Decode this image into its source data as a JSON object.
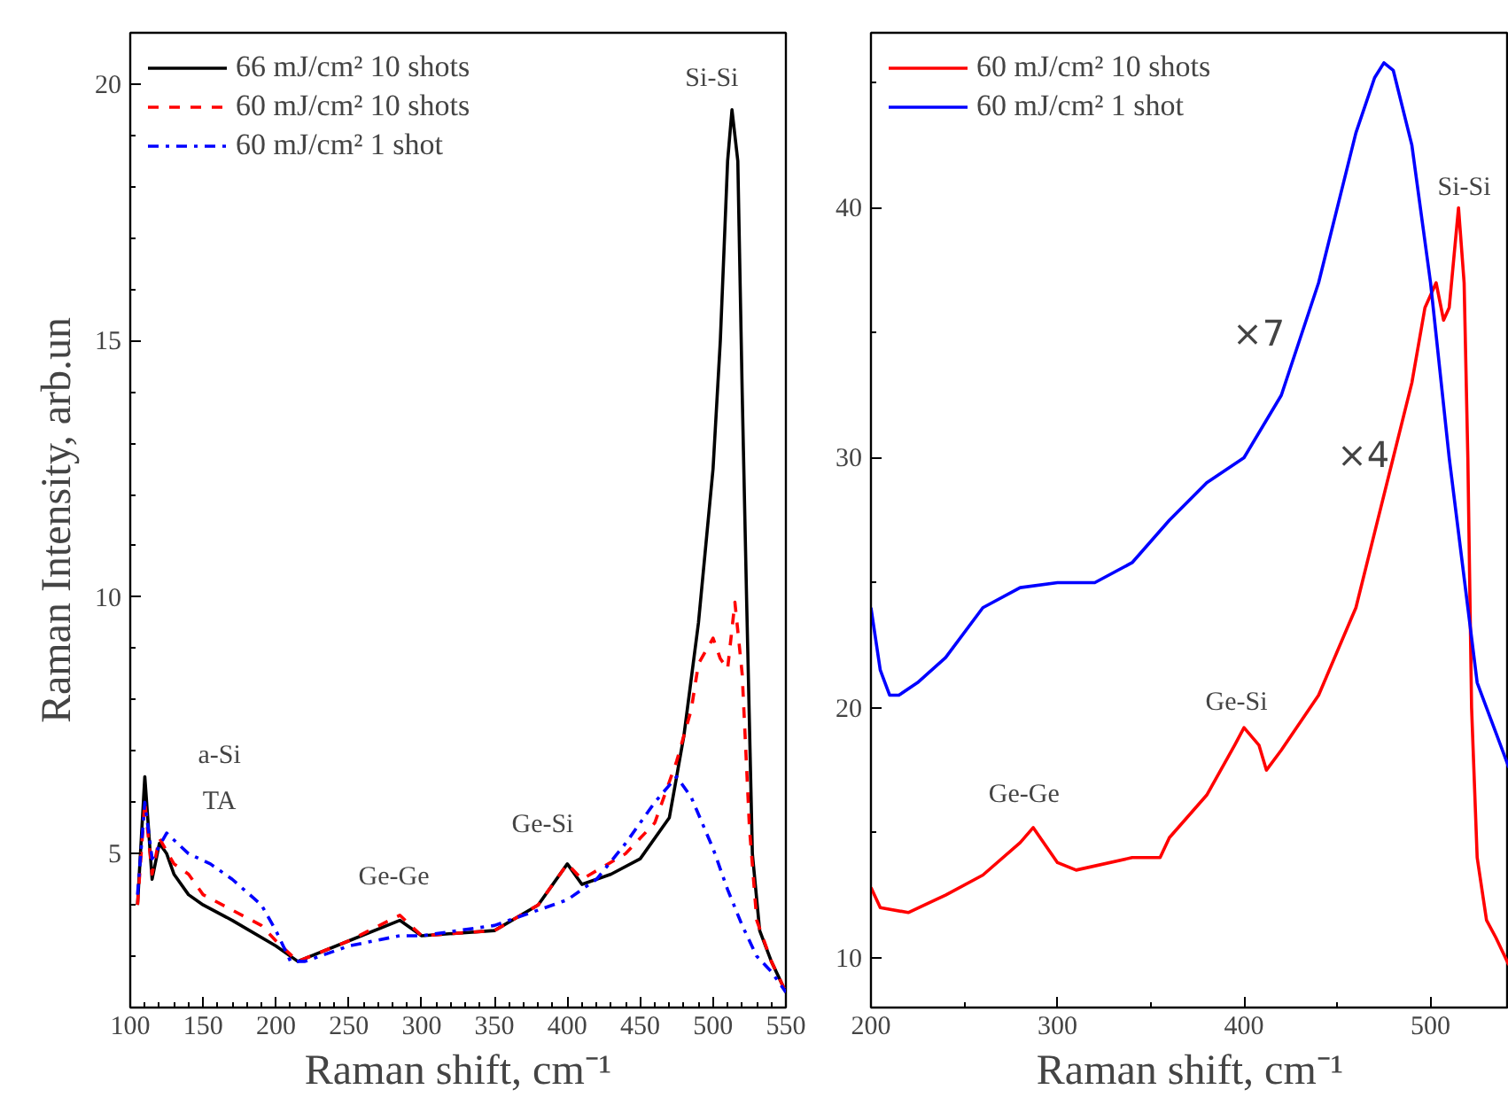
{
  "chart_data": [
    {
      "type": "line",
      "xlabel": "Raman shift, cm⁻¹",
      "ylabel": "Raman Intensity, arb.un",
      "xlim": [
        100,
        550
      ],
      "ylim": [
        2,
        21
      ],
      "xticks": [
        100,
        150,
        200,
        250,
        300,
        350,
        400,
        450,
        500,
        550
      ],
      "yticks": [
        5,
        10,
        15,
        20
      ],
      "grid": false,
      "legend": "top left",
      "series": [
        {
          "name": "66 mJ/cm² 10 shots",
          "color": "#000000",
          "line_style": "solid",
          "x": [
            105,
            110,
            115,
            120,
            125,
            130,
            140,
            150,
            170,
            200,
            215,
            250,
            285,
            300,
            350,
            380,
            400,
            410,
            430,
            450,
            470,
            480,
            490,
            500,
            505,
            510,
            513,
            517,
            520,
            523,
            527,
            532,
            540,
            550
          ],
          "values": [
            4.0,
            6.5,
            4.5,
            5.2,
            5.0,
            4.6,
            4.2,
            4.0,
            3.7,
            3.2,
            2.9,
            3.3,
            3.7,
            3.4,
            3.5,
            4.0,
            4.8,
            4.4,
            4.6,
            4.9,
            5.7,
            7.3,
            9.5,
            12.5,
            15,
            18.5,
            19.5,
            18.5,
            14,
            10,
            5,
            3.5,
            2.9,
            2.3
          ]
        },
        {
          "name": "60 mJ/cm² 10 shots",
          "color": "#ff0000",
          "line_style": "dashed",
          "x": [
            105,
            110,
            115,
            120,
            130,
            140,
            150,
            170,
            190,
            200,
            215,
            250,
            285,
            300,
            350,
            380,
            400,
            410,
            440,
            460,
            475,
            485,
            490,
            500,
            505,
            510,
            515,
            520,
            525,
            530,
            540,
            550
          ],
          "values": [
            4.0,
            6.0,
            4.6,
            5.3,
            4.8,
            4.6,
            4.2,
            3.9,
            3.6,
            3.3,
            2.9,
            3.3,
            3.8,
            3.4,
            3.5,
            4.0,
            4.8,
            4.5,
            5.0,
            5.6,
            6.8,
            7.8,
            8.7,
            9.2,
            8.8,
            8.6,
            9.9,
            8.5,
            5.5,
            3.7,
            2.9,
            2.3
          ]
        },
        {
          "name": "60 mJ/cm² 1 shot",
          "color": "#0000ff",
          "line_style": "dashdot",
          "x": [
            105,
            110,
            115,
            125,
            140,
            155,
            170,
            190,
            200,
            210,
            220,
            250,
            285,
            300,
            350,
            380,
            400,
            420,
            440,
            460,
            475,
            485,
            500,
            510,
            520,
            530,
            540,
            550
          ],
          "values": [
            4.2,
            6.0,
            4.9,
            5.4,
            5.0,
            4.8,
            4.5,
            4.0,
            3.5,
            2.9,
            2.9,
            3.2,
            3.4,
            3.4,
            3.6,
            3.9,
            4.1,
            4.5,
            5.2,
            6.0,
            6.5,
            6.1,
            5.1,
            4.3,
            3.6,
            3.0,
            2.7,
            2.3
          ]
        }
      ],
      "annotations": [
        "a-Si",
        "TA",
        "Ge-Ge",
        "Ge-Si",
        "Si-Si"
      ]
    },
    {
      "type": "line",
      "xlabel": "Raman shift, cm⁻¹",
      "xlim": [
        200,
        542
      ],
      "ylim": [
        8,
        47
      ],
      "xticks": [
        200,
        300,
        400,
        500
      ],
      "yticks": [
        10,
        20,
        30,
        40
      ],
      "grid": false,
      "legend": "top left",
      "series": [
        {
          "name": "60 mJ/cm² 10 shots",
          "color": "#ff0000",
          "line_style": "solid",
          "x": [
            200,
            205,
            220,
            240,
            260,
            280,
            287,
            300,
            310,
            340,
            355,
            360,
            380,
            395,
            400,
            408,
            412,
            420,
            440,
            460,
            470,
            480,
            490,
            497,
            503,
            507,
            510,
            515,
            518,
            520,
            522,
            525,
            530,
            535,
            542
          ],
          "values": [
            12.8,
            12,
            11.8,
            12.5,
            13.3,
            14.6,
            15.2,
            13.8,
            13.5,
            14,
            14,
            14.8,
            16.5,
            18.5,
            19.2,
            18.5,
            17.5,
            18.3,
            20.5,
            24,
            27,
            30,
            33,
            36,
            37,
            35.5,
            36,
            40,
            37,
            30,
            20,
            14,
            11.5,
            10.8,
            9.7
          ]
        },
        {
          "name": "60 mJ/cm² 1 shot",
          "color": "#0000ff",
          "line_style": "solid",
          "x": [
            200,
            205,
            210,
            215,
            225,
            240,
            260,
            280,
            300,
            320,
            340,
            360,
            380,
            400,
            420,
            440,
            460,
            470,
            475,
            480,
            490,
            500,
            510,
            520,
            525,
            530,
            535,
            542
          ],
          "values": [
            24,
            21.5,
            20.5,
            20.5,
            21,
            22,
            24,
            24.8,
            25,
            25,
            25.8,
            27.5,
            29,
            30,
            32.5,
            37,
            43,
            45.2,
            45.8,
            45.5,
            42.5,
            37,
            30,
            24,
            21,
            20,
            19,
            17.6
          ]
        }
      ],
      "annotations": [
        "Ge-Ge",
        "Ge-Si",
        "Si-Si",
        "×7",
        "×4"
      ]
    }
  ]
}
